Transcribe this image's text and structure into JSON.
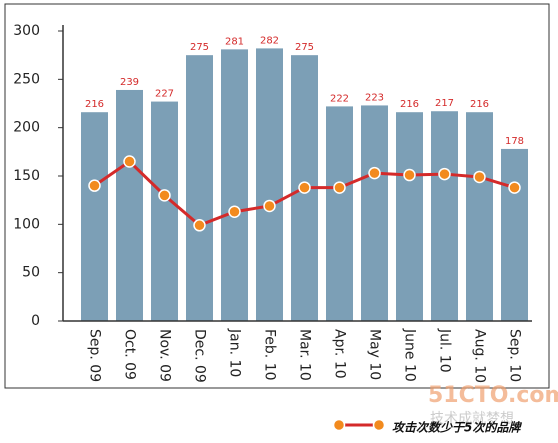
{
  "chart_data": {
    "type": "bar",
    "categories": [
      "Sep. 09",
      "Oct. 09",
      "Nov. 09",
      "Dec. 09",
      "Jan. 10",
      "Feb. 10",
      "Mar. 10",
      "Apr. 10",
      "May 10",
      "June 10",
      "Jul. 10",
      "Aug. 10",
      "Sep. 10"
    ],
    "values": [
      216,
      239,
      227,
      275,
      281,
      282,
      275,
      222,
      223,
      216,
      217,
      216,
      178
    ],
    "color": "#7c9fb6",
    "label_color": "#d42a2a",
    "line_series": {
      "name": "攻击次数少于5次的品牌",
      "color": "#d42a2a",
      "marker_color": "#f28a1e",
      "values": [
        140,
        165,
        130,
        99,
        113,
        119,
        138,
        138,
        153,
        151,
        152,
        149,
        138
      ]
    },
    "ylim": [
      0,
      300
    ],
    "yticks": [
      0,
      50,
      100,
      150,
      200,
      250,
      300
    ],
    "watermark": {
      "logo": "51CTO.com",
      "slogan": "技术成就梦想"
    }
  }
}
